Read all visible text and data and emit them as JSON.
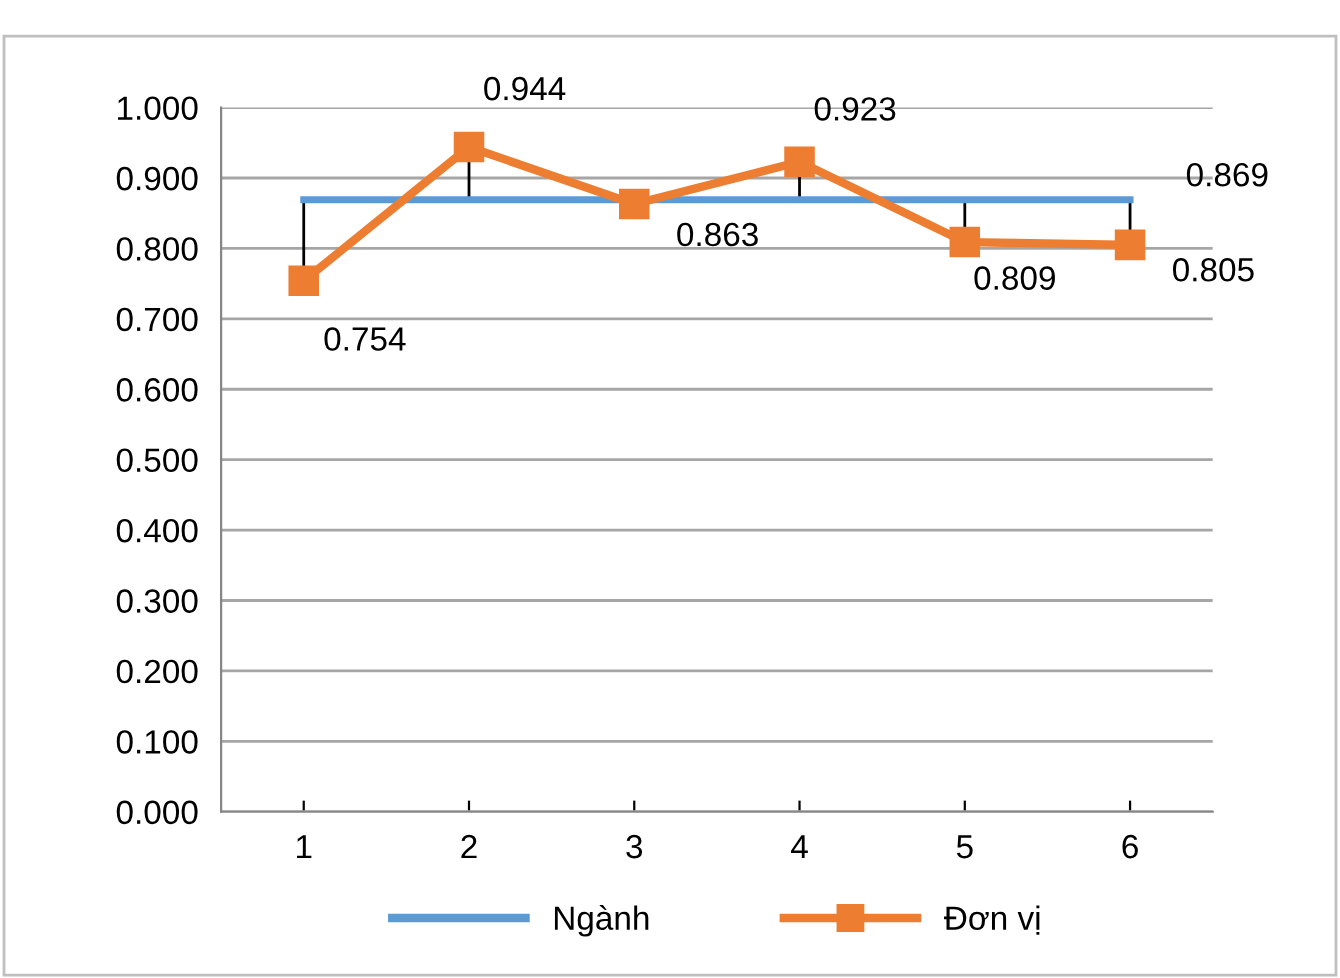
{
  "chart_data": {
    "type": "line",
    "categories": [
      "1",
      "2",
      "3",
      "4",
      "5",
      "6"
    ],
    "series": [
      {
        "name": "Ngành",
        "color": "#5b9bd5",
        "marker": "none",
        "values": [
          0.869,
          0.869,
          0.869,
          0.869,
          0.869,
          0.869
        ],
        "value_labels": [
          null,
          null,
          null,
          null,
          null,
          "0.869"
        ]
      },
      {
        "name": "Đơn vị",
        "color": "#ed7d31",
        "marker": "square",
        "values": [
          0.754,
          0.944,
          0.863,
          0.923,
          0.809,
          0.805
        ],
        "value_labels": [
          "0.754",
          "0.944",
          "0.863",
          "0.923",
          "0.809",
          "0.805"
        ],
        "errors": [
          [
            0.754,
            0.869
          ],
          [
            0.869,
            0.944
          ],
          null,
          [
            0.869,
            0.923
          ],
          [
            0.809,
            0.869
          ],
          [
            0.805,
            0.869
          ]
        ]
      }
    ],
    "ylim": [
      0,
      1
    ],
    "yticks": [
      {
        "value": 0,
        "label": "0.000"
      },
      {
        "value": 0.1,
        "label": "0.100"
      },
      {
        "value": 0.2,
        "label": "0.200"
      },
      {
        "value": 0.3,
        "label": "0.300"
      },
      {
        "value": 0.4,
        "label": "0.400"
      },
      {
        "value": 0.5,
        "label": "0.500"
      },
      {
        "value": 0.6,
        "label": "0.600"
      },
      {
        "value": 0.7,
        "label": "0.700"
      },
      {
        "value": 0.8,
        "label": "0.800"
      },
      {
        "value": 0.9,
        "label": "0.900"
      },
      {
        "value": 1,
        "label": "1.000"
      }
    ],
    "grid": "y",
    "legend": "bottom"
  }
}
